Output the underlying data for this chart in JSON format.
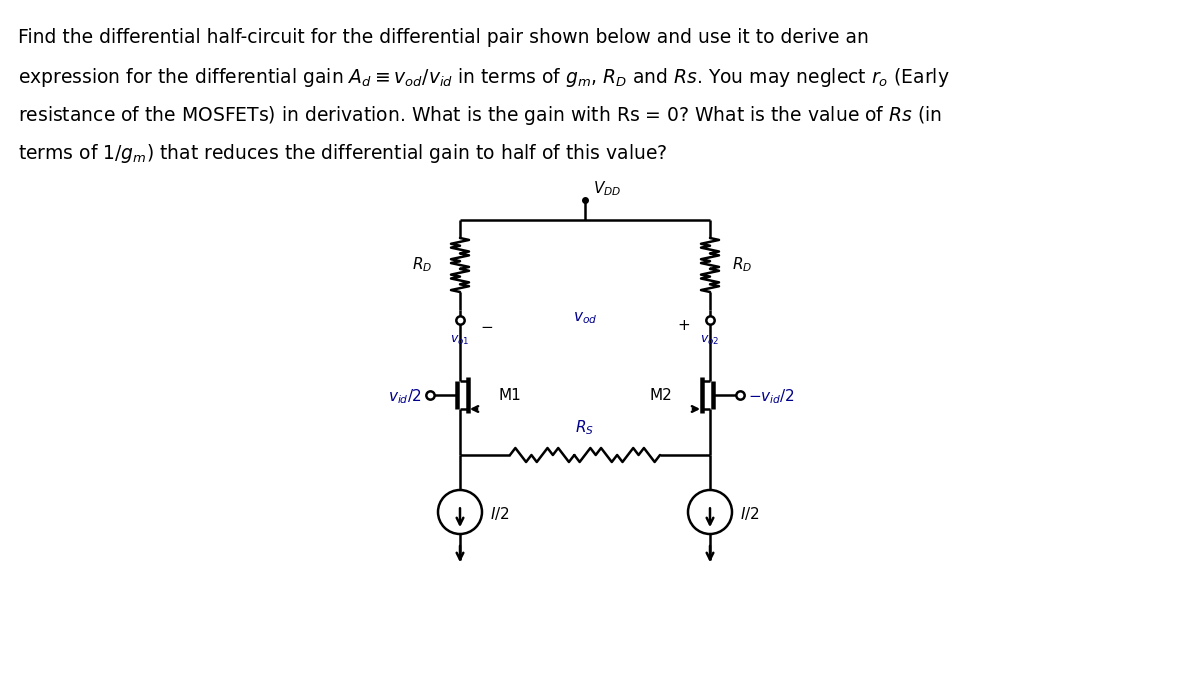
{
  "bg_color": "#ffffff",
  "line_color": "#000000",
  "circuit": {
    "vdd_label": "V_DD",
    "rd_label": "R_D",
    "vod_minus": "-",
    "vod_plus": "+",
    "vod_label": "v_od",
    "vo1_label": "v_o1",
    "vo2_label": "v_o2",
    "m1_label": "M1",
    "m2_label": "M2",
    "vid_left_label": "v_id/2",
    "vid_right_label": "-v_id/2",
    "rs_label": "R_S",
    "i_left_label": "I/2",
    "i_right_label": "I/2"
  },
  "text_lines": [
    "Find the differential half-circuit for the differential pair shown below and use it to derive an",
    "expression for the differential gain $A_d \\equiv v_{od}/v_{id}$ in terms of $g_m$, $R_D$ and $Rs$. You may neglect $r_o$ (Early",
    "resistance of the MOSFETs) in derivation. What is the gain with Rs = 0? What is the value of $Rs$ (in",
    "terms of 1/$g_m$) that reduces the differential gain to half of this value?"
  ]
}
